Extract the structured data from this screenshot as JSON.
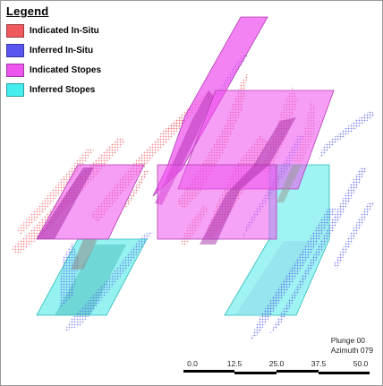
{
  "legend": {
    "title": "Legend",
    "items": [
      {
        "label": "Indicated In-Situ",
        "color": "#f05a5f"
      },
      {
        "label": "Inferred In-Situ",
        "color": "#5a55f0"
      },
      {
        "label": "Indicated Stopes",
        "color": "#ee55ee"
      },
      {
        "label": "Inferred Stopes",
        "color": "#44eeee"
      }
    ]
  },
  "view": {
    "plunge": "Plunge 00",
    "azimuth": "Azimuth 079"
  },
  "scale_bar": {
    "ticks": [
      "0.0",
      "12.5",
      "25.0",
      "37.5",
      "50.0"
    ]
  }
}
